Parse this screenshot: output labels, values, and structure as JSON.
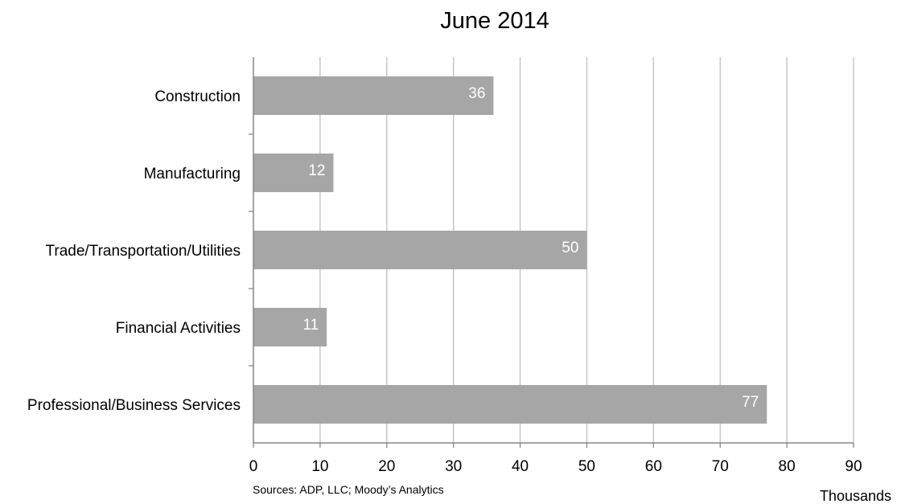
{
  "chart_data": {
    "type": "bar",
    "orientation": "horizontal",
    "title": "June 2014",
    "categories": [
      "Construction",
      "Manufacturing",
      "Trade/Transportation/Utilities",
      "Financial Activities",
      "Professional/Business Services"
    ],
    "values": [
      36,
      12,
      50,
      11,
      77
    ],
    "data_labels": [
      "36",
      "12",
      "50",
      "11",
      "77"
    ],
    "xlim": [
      0,
      90
    ],
    "x_ticks": [
      0,
      10,
      20,
      30,
      40,
      50,
      60,
      70,
      80,
      90
    ],
    "x_unit_label": "Thousands",
    "source": "Sources: ADP, LLC; Moody’s Analytics",
    "gridlines": "vertical",
    "legend": "none"
  },
  "colors": {
    "bar": "#a6a6a6",
    "grid": "#bfbfbf",
    "axis": "#868686",
    "data_label": "#ffffff"
  }
}
